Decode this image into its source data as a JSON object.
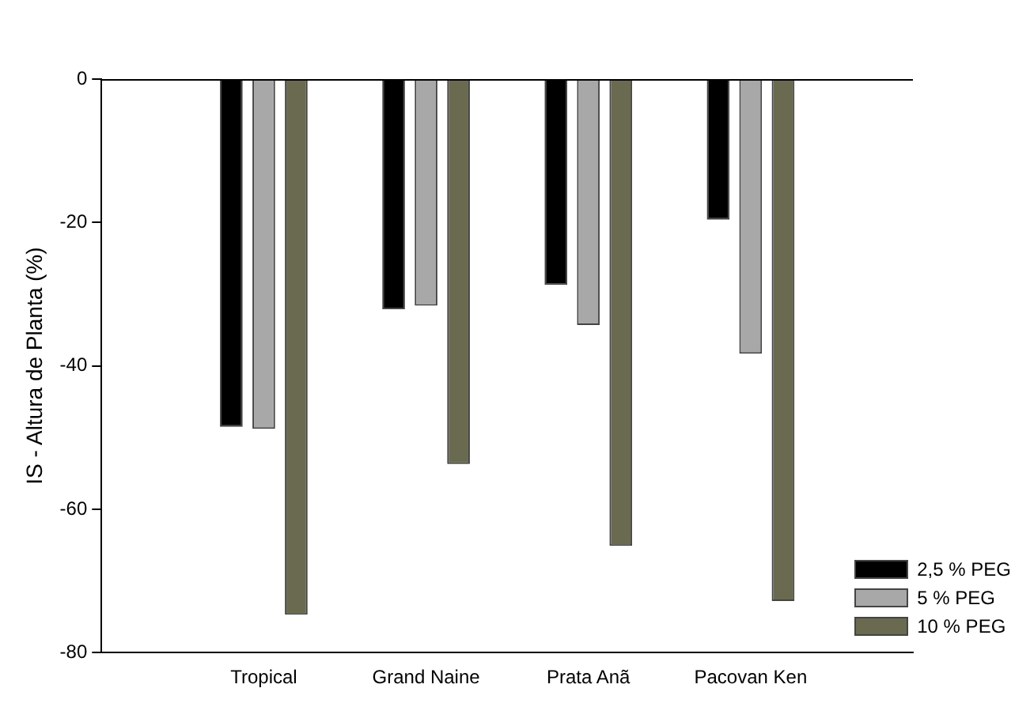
{
  "chart_data": {
    "type": "bar",
    "ylabel": "IS - Altura de Planta (%)",
    "categories": [
      "Tropical",
      "Grand Naine",
      "Prata Anã",
      "Pacovan Ken"
    ],
    "series": [
      {
        "name": "2,5 % PEG",
        "color": "#000000",
        "values": [
          -48.5,
          -32.1,
          -28.7,
          -19.6
        ]
      },
      {
        "name": "5 % PEG",
        "color": "#a8a8a8",
        "values": [
          -48.8,
          -31.6,
          -34.3,
          -38.3
        ]
      },
      {
        "name": "10 % PEG",
        "color": "#696a50",
        "values": [
          -74.7,
          -53.7,
          -65.1,
          -72.8
        ]
      }
    ],
    "ylim": [
      -80,
      0
    ],
    "yticks": [
      -80,
      -60,
      -40,
      -20,
      0
    ],
    "grid": false,
    "legend": "bottom right"
  }
}
